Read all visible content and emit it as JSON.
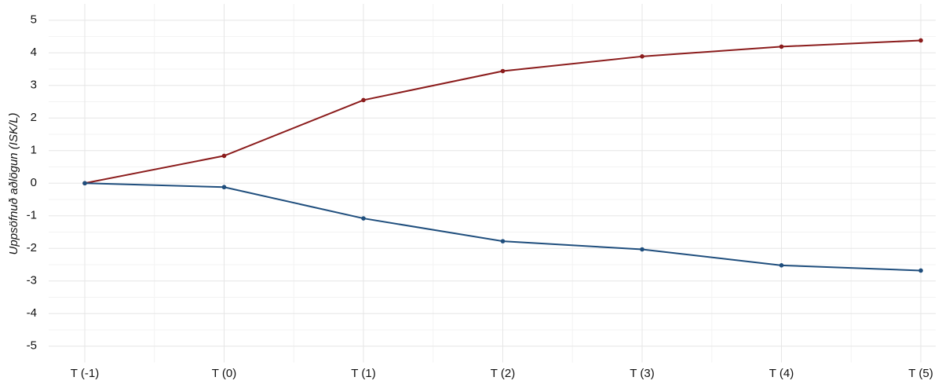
{
  "chart_data": {
    "type": "line",
    "y_label": "Uppsöfnuð aðlögun (ISK/L)",
    "categories": [
      "T (-1)",
      "T (0)",
      "T (1)",
      "T (2)",
      "T (3)",
      "T (4)",
      "T (5)"
    ],
    "series": [
      {
        "color": "#8b1c1c",
        "values": [
          0,
          0.84,
          2.55,
          3.44,
          3.89,
          4.19,
          4.38
        ]
      },
      {
        "color": "#1f4e7d",
        "values": [
          0,
          -0.12,
          -1.08,
          -1.78,
          -2.03,
          -2.52,
          -2.68
        ]
      }
    ],
    "ylim": [
      -5.5,
      5.5
    ],
    "yticks": [
      -5,
      -4,
      -3,
      -2,
      -1,
      0,
      1,
      2,
      3,
      4,
      5
    ],
    "grid": true
  }
}
